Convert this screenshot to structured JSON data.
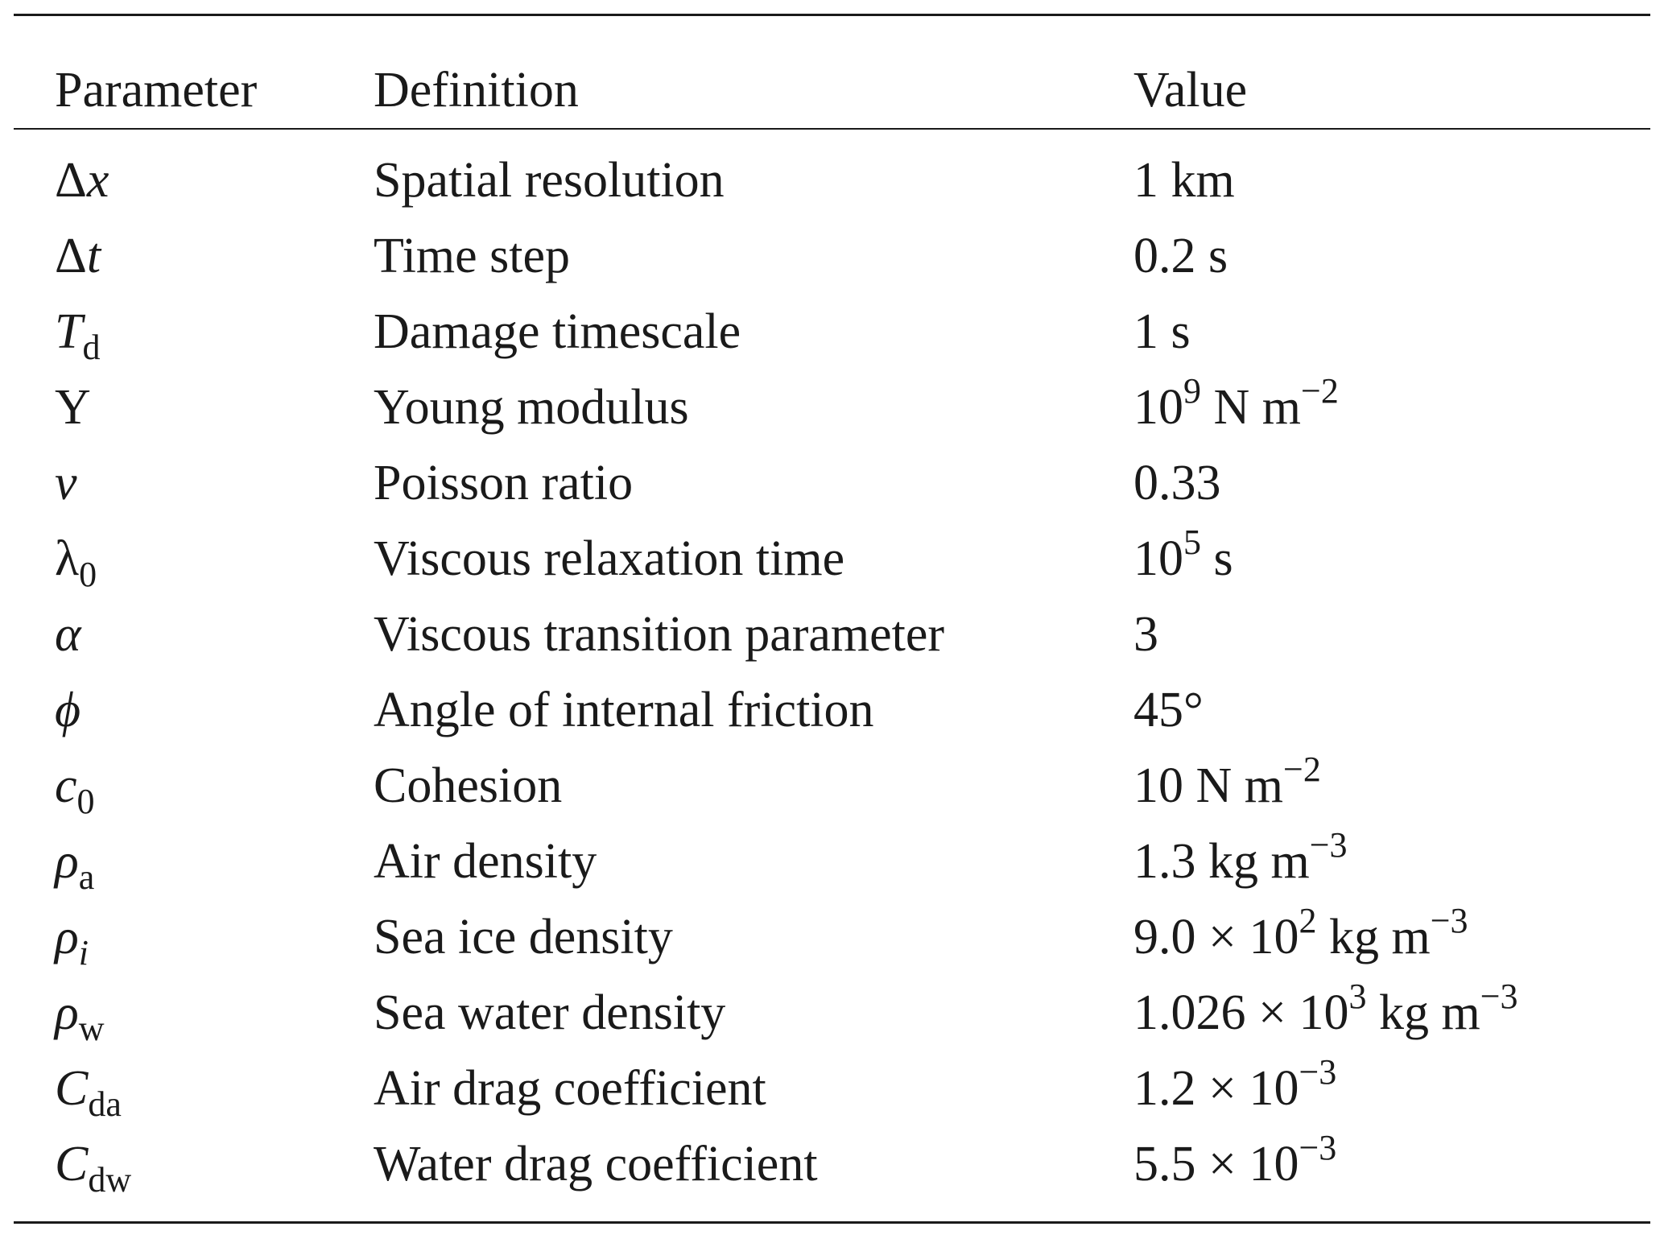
{
  "table": {
    "headers": [
      "Parameter",
      "Definition",
      "Value"
    ],
    "rows": [
      {
        "symbol": {
          "base": "Δ",
          "base2": "x",
          "base2_italic": true
        },
        "definition": "Spatial resolution",
        "value": [
          {
            "t": "1 km"
          }
        ]
      },
      {
        "symbol": {
          "base": "Δ",
          "base2": "t",
          "base2_italic": true
        },
        "definition": "Time step",
        "value": [
          {
            "t": "0.2 s"
          }
        ]
      },
      {
        "symbol": {
          "base": "T",
          "base_italic": true,
          "sub": "d"
        },
        "definition": "Damage timescale",
        "value": [
          {
            "t": "1 s"
          }
        ]
      },
      {
        "symbol": {
          "base": "Y"
        },
        "definition": "Young modulus",
        "value": [
          {
            "t": "10"
          },
          {
            "t": "9",
            "sup": true
          },
          {
            "t": " N m"
          },
          {
            "t": "−2",
            "sup": true
          }
        ]
      },
      {
        "symbol": {
          "base": "ν",
          "base_italic": true
        },
        "definition": "Poisson ratio",
        "value": [
          {
            "t": "0.33"
          }
        ]
      },
      {
        "symbol": {
          "base": "λ",
          "sub": "0"
        },
        "definition": "Viscous relaxation time",
        "value": [
          {
            "t": "10"
          },
          {
            "t": "5",
            "sup": true
          },
          {
            "t": " s"
          }
        ]
      },
      {
        "symbol": {
          "base": "α",
          "base_italic": true
        },
        "definition": "Viscous transition parameter",
        "value": [
          {
            "t": "3"
          }
        ]
      },
      {
        "symbol": {
          "base": "ϕ",
          "base_italic": true
        },
        "definition": "Angle of internal friction",
        "value": [
          {
            "t": "45°"
          }
        ]
      },
      {
        "symbol": {
          "base": "c",
          "base_italic": true,
          "sub": "0"
        },
        "definition": "Cohesion",
        "value": [
          {
            "t": "10 N m"
          },
          {
            "t": "−2",
            "sup": true
          }
        ]
      },
      {
        "symbol": {
          "base": "ρ",
          "base_italic": true,
          "sub": "a"
        },
        "definition": "Air density",
        "value": [
          {
            "t": "1.3 kg m"
          },
          {
            "t": "−3",
            "sup": true
          }
        ]
      },
      {
        "symbol": {
          "base": "ρ",
          "base_italic": true,
          "sub": "i",
          "sub_italic": true
        },
        "definition": "Sea ice density",
        "value": [
          {
            "t": "9.0 × 10"
          },
          {
            "t": "2",
            "sup": true
          },
          {
            "t": " kg m"
          },
          {
            "t": "−3",
            "sup": true
          }
        ]
      },
      {
        "symbol": {
          "base": "ρ",
          "base_italic": true,
          "sub": "w"
        },
        "definition": "Sea water density",
        "value": [
          {
            "t": "1.026 × 10"
          },
          {
            "t": "3",
            "sup": true
          },
          {
            "t": " kg m"
          },
          {
            "t": "−3",
            "sup": true
          }
        ]
      },
      {
        "symbol": {
          "base": "C",
          "base_italic": true,
          "sub": "da"
        },
        "definition": "Air drag coefficient",
        "value": [
          {
            "t": "1.2 × 10"
          },
          {
            "t": "−3",
            "sup": true
          }
        ]
      },
      {
        "symbol": {
          "base": "C",
          "base_italic": true,
          "sub": "dw"
        },
        "definition": "Water drag coefficient",
        "value": [
          {
            "t": "5.5 × 10"
          },
          {
            "t": "−3",
            "sup": true
          }
        ]
      }
    ]
  }
}
